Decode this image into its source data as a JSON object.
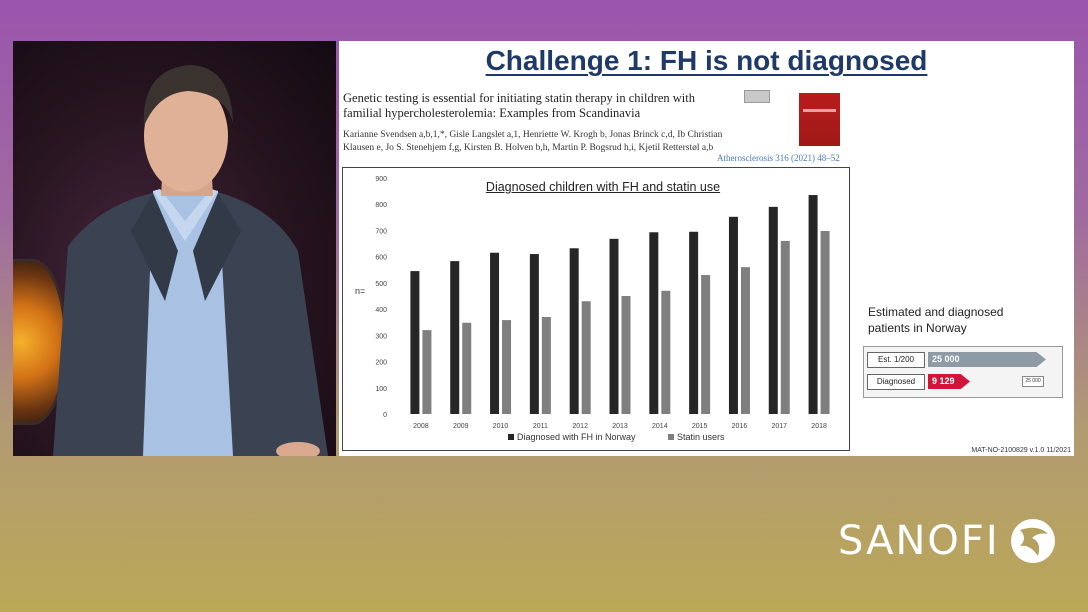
{
  "slide": {
    "title": "Challenge 1: FH is not diagnosed",
    "paper": {
      "title": "Genetic testing is essential for initiating statin therapy in children with familial hypercholesterolemia: Examples from Scandinavia",
      "authors": "Karianne Svendsen a,b,1,*, Gisle Langslet a,1, Henriette W. Krogh b, Jonas Brinck c,d, Ib Christian Klausen e, Jo S. Stenehjem f,g, Kirsten B. Holven b,h, Martin P. Bogsrud h,i, Kjetil Retterstøl a,b",
      "citation": "Atherosclerosis 316 (2021) 48–52"
    },
    "side": {
      "label": "Estimated and diagnosed patients in Norway",
      "rows": [
        {
          "tag": "Est. 1/200",
          "value": "25 000"
        },
        {
          "tag": "Diagnosed",
          "value": "9 129"
        }
      ],
      "small_tag": "25 000"
    },
    "footnote": "MAT-NO-2100829 v.1.0 11/2021"
  },
  "chart_data": {
    "type": "bar",
    "title": "Diagnosed children with FH and statin use",
    "ylabel": "n=",
    "xlabel": "",
    "ylim": [
      0,
      900
    ],
    "yticks": [
      0,
      100,
      200,
      300,
      400,
      500,
      600,
      700,
      800,
      900
    ],
    "categories": [
      "2008",
      "2009",
      "2010",
      "2011",
      "2012",
      "2013",
      "2014",
      "2015",
      "2016",
      "2017",
      "2018"
    ],
    "series": [
      {
        "name": "Diagnosed with FH in Norway",
        "color": "#262626",
        "values": [
          545,
          583,
          615,
          610,
          632,
          668,
          693,
          695,
          752,
          790,
          835
        ]
      },
      {
        "name": "Statin users",
        "color": "#7f7f7f",
        "values": [
          320,
          348,
          358,
          370,
          430,
          450,
          470,
          530,
          560,
          660,
          698
        ]
      }
    ],
    "legend": "bottom",
    "grid": false
  },
  "brand": {
    "logo_text": "SANOFI"
  }
}
